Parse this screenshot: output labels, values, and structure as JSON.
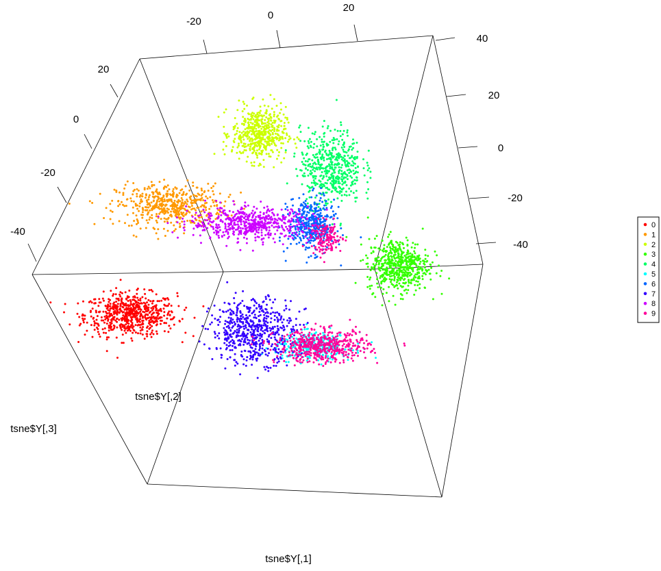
{
  "chart_data": {
    "type": "scatter",
    "projection": "3d",
    "axes": {
      "x": {
        "label": "tsne$Y[,1]",
        "ticks": [
          "-20",
          "0",
          "20"
        ]
      },
      "y": {
        "label": "tsne$Y[,2]",
        "ticks": [
          "40",
          "20",
          "0",
          "-20",
          "-40"
        ]
      },
      "z": {
        "label": "tsne$Y[,3]",
        "ticks": [
          "20",
          "0",
          "-20",
          "-40"
        ]
      }
    },
    "legend": {
      "placement": "right",
      "entries": [
        {
          "label": "0",
          "color": "#ff0000"
        },
        {
          "label": "1",
          "color": "#ff9900"
        },
        {
          "label": "2",
          "color": "#ccff00"
        },
        {
          "label": "3",
          "color": "#33ff00"
        },
        {
          "label": "4",
          "color": "#00ff66"
        },
        {
          "label": "5",
          "color": "#00ffff"
        },
        {
          "label": "6",
          "color": "#0066ff"
        },
        {
          "label": "7",
          "color": "#3300ff"
        },
        {
          "label": "8",
          "color": "#cc00ff"
        },
        {
          "label": "9",
          "color": "#ff0099"
        }
      ]
    },
    "series": [
      {
        "name": "0",
        "color": "#ff0000",
        "clusters": [
          {
            "x": -37,
            "y": -22,
            "z": -10,
            "sx": 6,
            "sy": 4,
            "n": 650
          }
        ]
      },
      {
        "name": "1",
        "color": "#ff9900",
        "clusters": [
          {
            "x": -32,
            "y": 10,
            "z": 15,
            "sx": 7,
            "sy": 4,
            "n": 520
          }
        ]
      },
      {
        "name": "2",
        "color": "#ccff00",
        "clusters": [
          {
            "x": -10,
            "y": 35,
            "z": 20,
            "sx": 3.5,
            "sy": 5,
            "n": 520
          }
        ]
      },
      {
        "name": "3",
        "color": "#33ff00",
        "clusters": [
          {
            "x": 36,
            "y": 2,
            "z": -25,
            "sx": 4,
            "sy": 5,
            "n": 560
          }
        ]
      },
      {
        "name": "4",
        "color": "#00ff66",
        "clusters": [
          {
            "x": 12,
            "y": 28,
            "z": 5,
            "sx": 4,
            "sy": 7,
            "n": 520
          }
        ]
      },
      {
        "name": "5",
        "color": "#00ffff",
        "clusters": [
          {
            "x": 12,
            "y": -32,
            "z": -15,
            "sx": 5,
            "sy": 2.5,
            "n": 300
          }
        ]
      },
      {
        "name": "6",
        "color": "#0066ff",
        "clusters": [
          {
            "x": 8,
            "y": 8,
            "z": 0,
            "sx": 3,
            "sy": 5,
            "n": 420
          }
        ]
      },
      {
        "name": "7",
        "color": "#3300ff",
        "clusters": [
          {
            "x": -5,
            "y": -28,
            "z": -10,
            "sx": 5.5,
            "sy": 6,
            "n": 600
          }
        ]
      },
      {
        "name": "8",
        "color": "#cc00ff",
        "clusters": [
          {
            "x": -10,
            "y": 5,
            "z": 10,
            "sx": 8,
            "sy": 3,
            "n": 560
          }
        ]
      },
      {
        "name": "9",
        "color": "#ff0099",
        "clusters": [
          {
            "x": 14,
            "y": -32,
            "z": -15,
            "sx": 6,
            "sy": 3,
            "n": 520
          },
          {
            "x": 12,
            "y": 3,
            "z": 0,
            "sx": 2,
            "sy": 3,
            "n": 140
          }
        ]
      }
    ]
  }
}
